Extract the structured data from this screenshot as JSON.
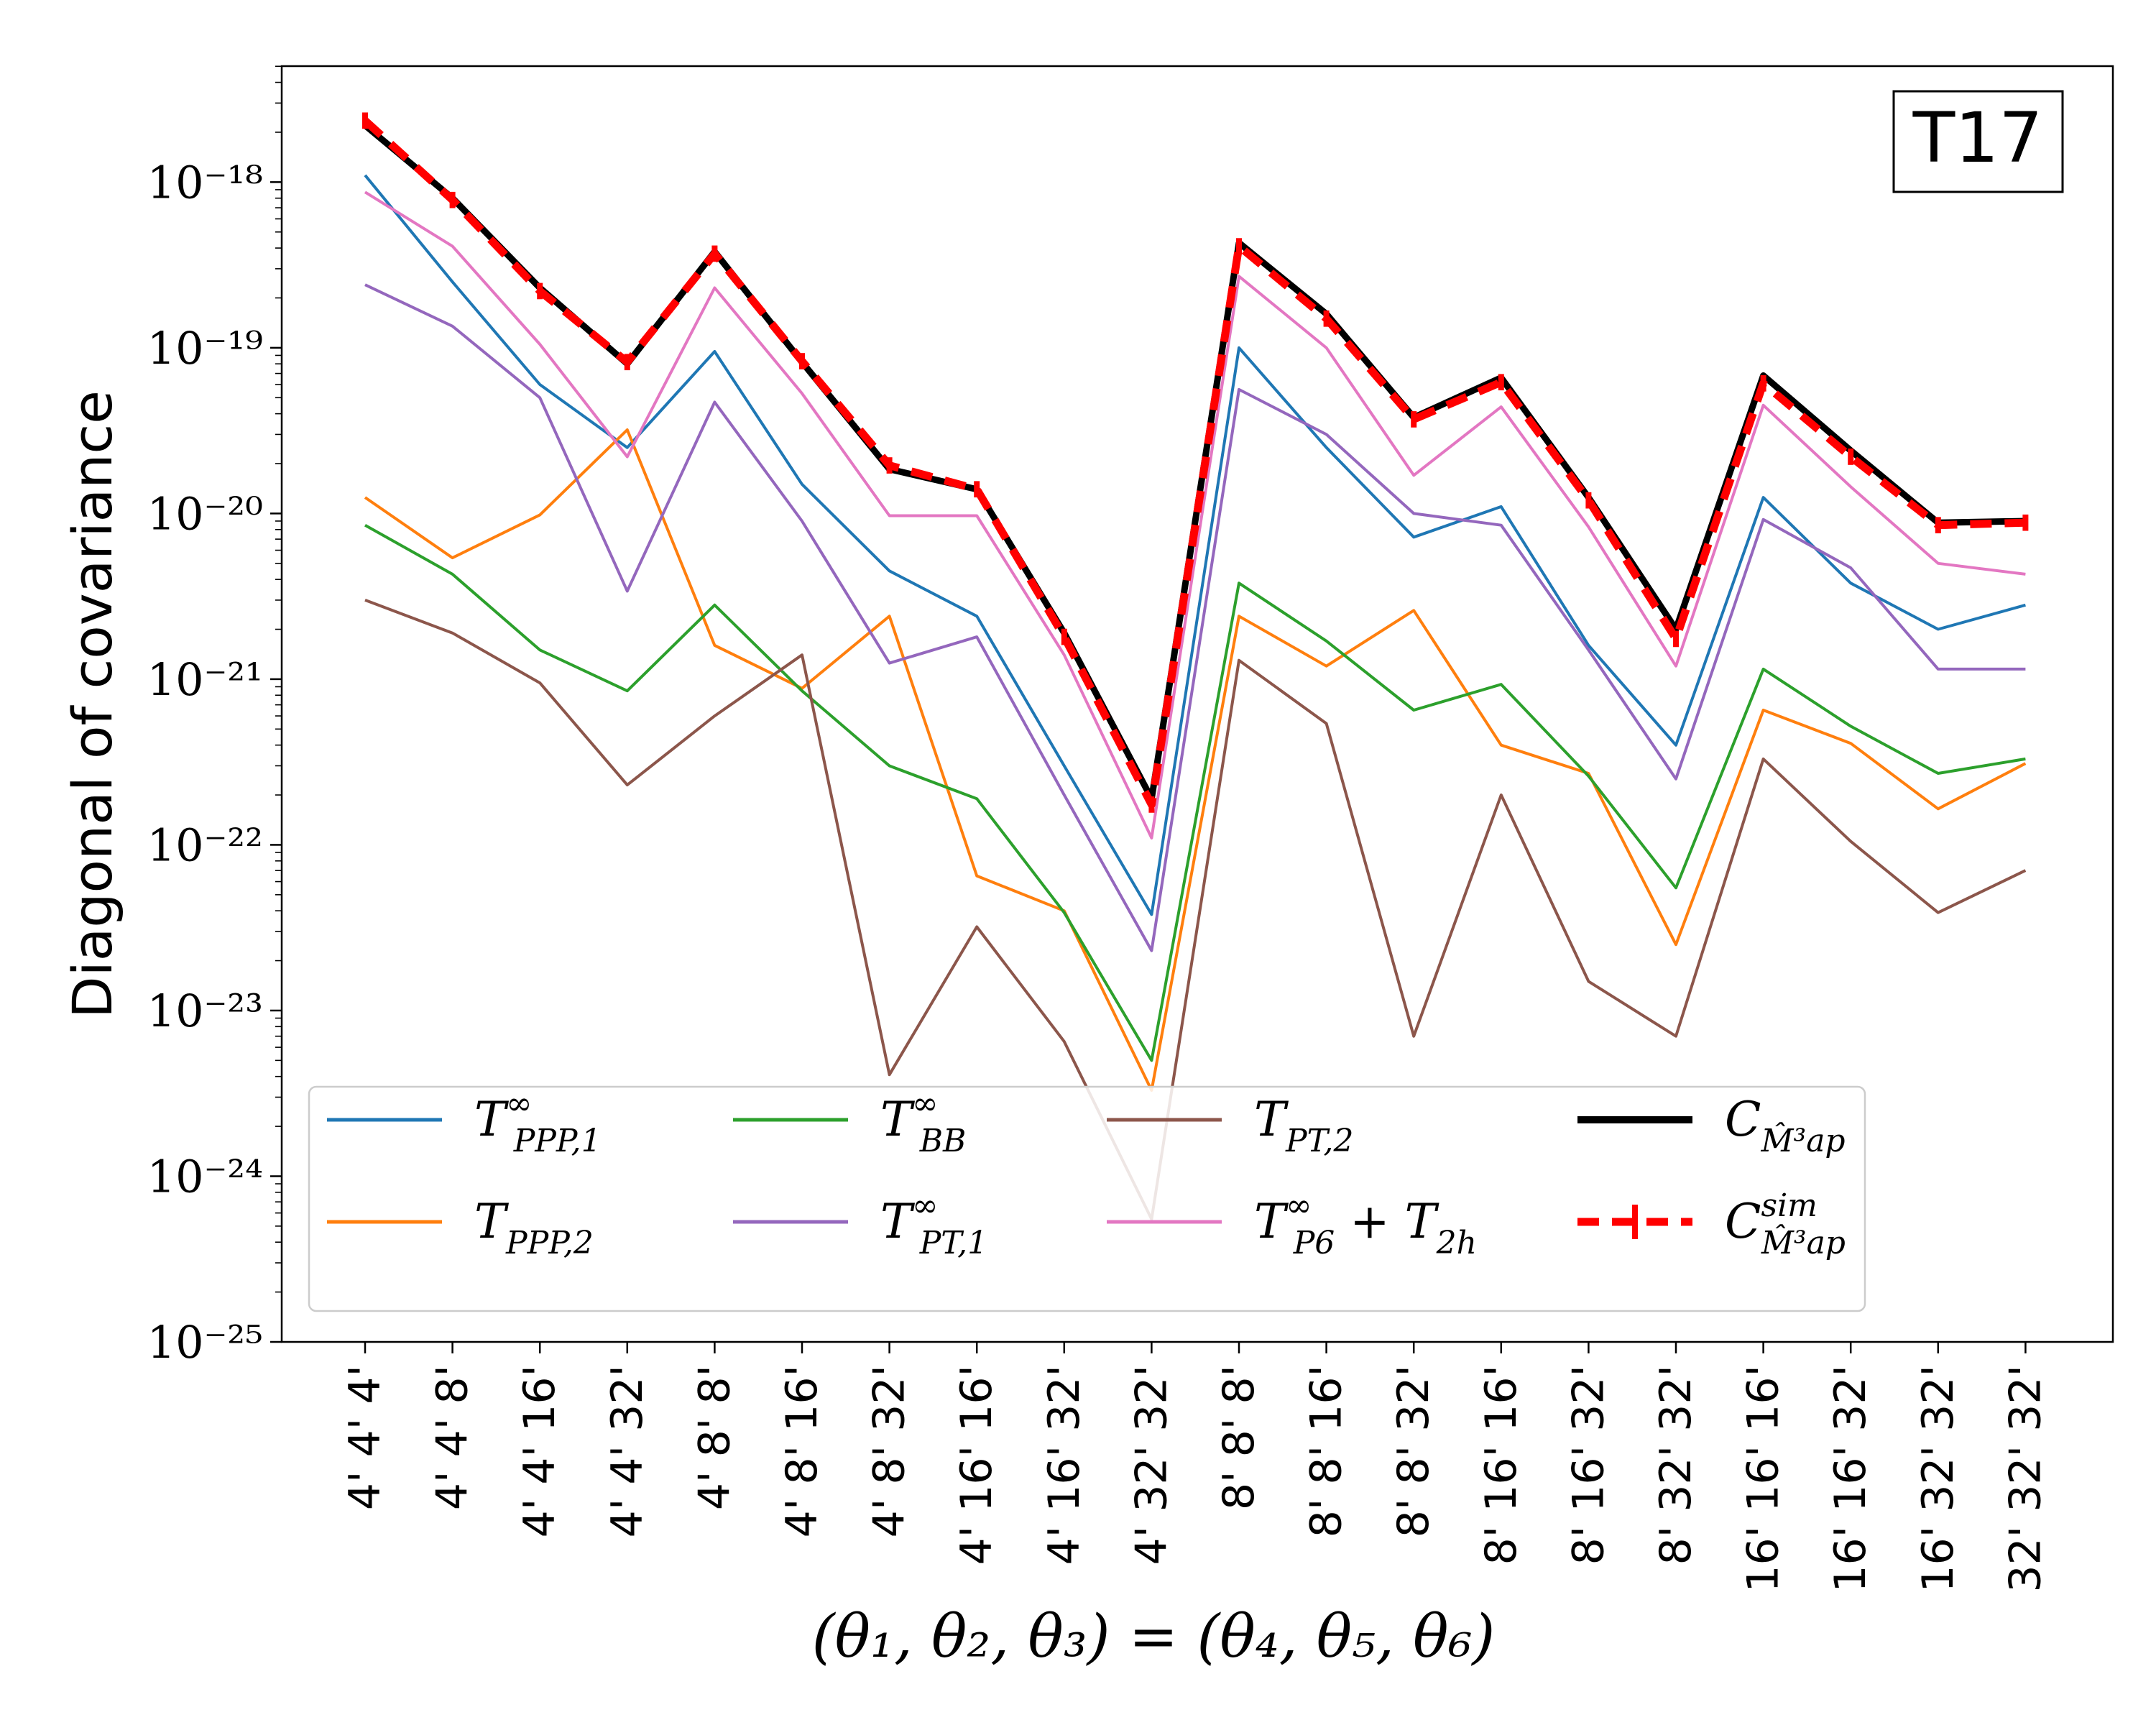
{
  "chart_data": {
    "type": "line",
    "panel_label": "T17",
    "ylabel": "Diagonal of covariance",
    "xlabel": "(θ₁, θ₂, θ₃) = (θ₄, θ₅, θ₆)",
    "yscale": "log",
    "ylim_exponents": [
      -25,
      -17.3
    ],
    "y_tick_exponents": [
      -25,
      -24,
      -23,
      -22,
      -21,
      -20,
      -19,
      -18
    ],
    "y_tick_labels": [
      "10⁻²⁵",
      "10⁻²⁴",
      "10⁻²³",
      "10⁻²²",
      "10⁻²¹",
      "10⁻²⁰",
      "10⁻¹⁹",
      "10⁻¹⁸"
    ],
    "categories": [
      "4' 4' 4'",
      "4' 4' 8'",
      "4' 4' 16'",
      "4' 4' 32'",
      "4' 8' 8'",
      "4' 8' 16'",
      "4' 8' 32'",
      "4' 16' 16'",
      "4' 16' 32'",
      "4' 32' 32'",
      "8' 8' 8'",
      "8' 8' 16'",
      "8' 8' 32'",
      "8' 16' 16'",
      "8' 16' 32'",
      "8' 32' 32'",
      "16' 16' 16'",
      "16' 16' 32'",
      "16' 32' 32'",
      "32' 32' 32'"
    ],
    "series": [
      {
        "id": "tppp1",
        "name": "T∞ PPP,1",
        "color": "#1f77b4",
        "style": "solid",
        "values": [
          1.1e-18,
          2.5e-19,
          6e-20,
          2.5e-20,
          9.5e-20,
          1.5e-20,
          4.5e-21,
          2.4e-21,
          3e-22,
          3.8e-23,
          1e-19,
          2.5e-20,
          7.2e-21,
          1.1e-20,
          1.6e-21,
          4e-22,
          1.25e-20,
          3.8e-21,
          2e-21,
          2.8e-21
        ]
      },
      {
        "id": "tppp2",
        "name": "T PPP,2",
        "color": "#ff7f0e",
        "style": "solid",
        "values": [
          1.25e-20,
          5.4e-21,
          9.8e-21,
          3.2e-20,
          1.6e-21,
          8.8e-22,
          2.4e-21,
          6.5e-23,
          4e-23,
          3.3e-24,
          2.4e-21,
          1.2e-21,
          2.6e-21,
          4e-22,
          2.7e-22,
          2.5e-23,
          6.5e-22,
          4.1e-22,
          1.65e-22,
          3.1e-22
        ]
      },
      {
        "id": "tbb",
        "name": "T∞ BB",
        "color": "#2ca02c",
        "style": "solid",
        "values": [
          8.5e-21,
          4.3e-21,
          1.5e-21,
          8.5e-22,
          2.8e-21,
          8.5e-22,
          3e-22,
          1.9e-22,
          3.9e-23,
          5e-24,
          3.8e-21,
          1.7e-21,
          6.5e-22,
          9.3e-22,
          2.6e-22,
          5.5e-23,
          1.15e-21,
          5.2e-22,
          2.7e-22,
          3.3e-22
        ]
      },
      {
        "id": "tpt1",
        "name": "T∞ PT,1",
        "color": "#9467bd",
        "style": "solid",
        "values": [
          2.4e-19,
          1.35e-19,
          5e-20,
          3.4e-21,
          4.7e-20,
          9e-21,
          1.25e-21,
          1.8e-21,
          2e-22,
          2.3e-23,
          5.6e-20,
          3e-20,
          1e-20,
          8.5e-21,
          1.5e-21,
          2.5e-22,
          9.2e-21,
          4.7e-21,
          1.15e-21,
          1.15e-21
        ]
      },
      {
        "id": "tpt2",
        "name": "T PT,2",
        "color": "#8c564b",
        "style": "solid",
        "values": [
          3e-21,
          1.9e-21,
          9.5e-22,
          2.3e-22,
          6e-22,
          1.4e-21,
          4.1e-24,
          3.2e-23,
          6.5e-24,
          5.5e-25,
          1.3e-21,
          5.4e-22,
          7e-24,
          2e-22,
          1.5e-23,
          7e-24,
          3.3e-22,
          1.05e-22,
          3.9e-23,
          7e-23
        ]
      },
      {
        "id": "tp6",
        "name": "T∞ P6 + T 2h",
        "color": "#e377c2",
        "style": "solid",
        "values": [
          8.7e-19,
          4.1e-19,
          1.05e-19,
          2.2e-20,
          2.3e-19,
          5.3e-20,
          9.7e-21,
          9.7e-21,
          1.4e-21,
          1.1e-22,
          2.7e-19,
          1e-19,
          1.7e-20,
          4.4e-20,
          8.3e-21,
          1.2e-21,
          4.5e-20,
          1.45e-20,
          5e-21,
          4.3e-21
        ]
      },
      {
        "id": "cmodel",
        "name": "C M̂ap³",
        "color": "#000000",
        "style": "solid",
        "values": [
          2.2e-18,
          8e-19,
          2.3e-19,
          8e-20,
          3.8e-19,
          8.2e-20,
          1.85e-20,
          1.4e-20,
          1.9e-21,
          1.9e-22,
          4.3e-19,
          1.6e-19,
          3.8e-20,
          6.6e-20,
          1.25e-20,
          2e-21,
          6.8e-20,
          2.4e-20,
          8.8e-21,
          9e-21
        ]
      },
      {
        "id": "csim",
        "name": "C sim M̂ap³",
        "color": "#ff0000",
        "style": "dashed",
        "values": [
          2.35e-18,
          7.8e-19,
          2.2e-19,
          8.2e-20,
          3.7e-19,
          8.3e-20,
          1.95e-20,
          1.4e-20,
          1.8e-21,
          1.75e-22,
          4.1e-19,
          1.5e-19,
          3.7e-20,
          6.2e-20,
          1.2e-20,
          1.75e-21,
          6.1e-20,
          2.2e-20,
          8.5e-21,
          8.8e-21
        ]
      }
    ],
    "legend_labels": {
      "tppp1": {
        "main": "T",
        "sup": "∞",
        "sub": "PPP,1"
      },
      "tppp2": {
        "main": "T",
        "sup": "",
        "sub": "PPP,2"
      },
      "tbb": {
        "main": "T",
        "sup": "∞",
        "sub": "BB"
      },
      "tpt1": {
        "main": "T",
        "sup": "∞",
        "sub": "PT,1"
      },
      "tpt2": {
        "main": "T",
        "sup": "",
        "sub": "PT,2"
      },
      "tp6": {
        "main": "T",
        "sup": "∞",
        "sub": "P6",
        "extra": "+ T",
        "extra_sub": "2h"
      },
      "cmodel": {
        "main": "C",
        "sup": "",
        "sub": "M̂³ap"
      },
      "csim": {
        "main": "C",
        "sup": "sim",
        "sub": "M̂³ap"
      }
    },
    "legend_order": [
      "tppp1",
      "tppp2",
      "tbb",
      "tpt1",
      "tpt2",
      "tp6",
      "cmodel",
      "csim"
    ],
    "legend_position": "lower-center",
    "grid": false
  }
}
